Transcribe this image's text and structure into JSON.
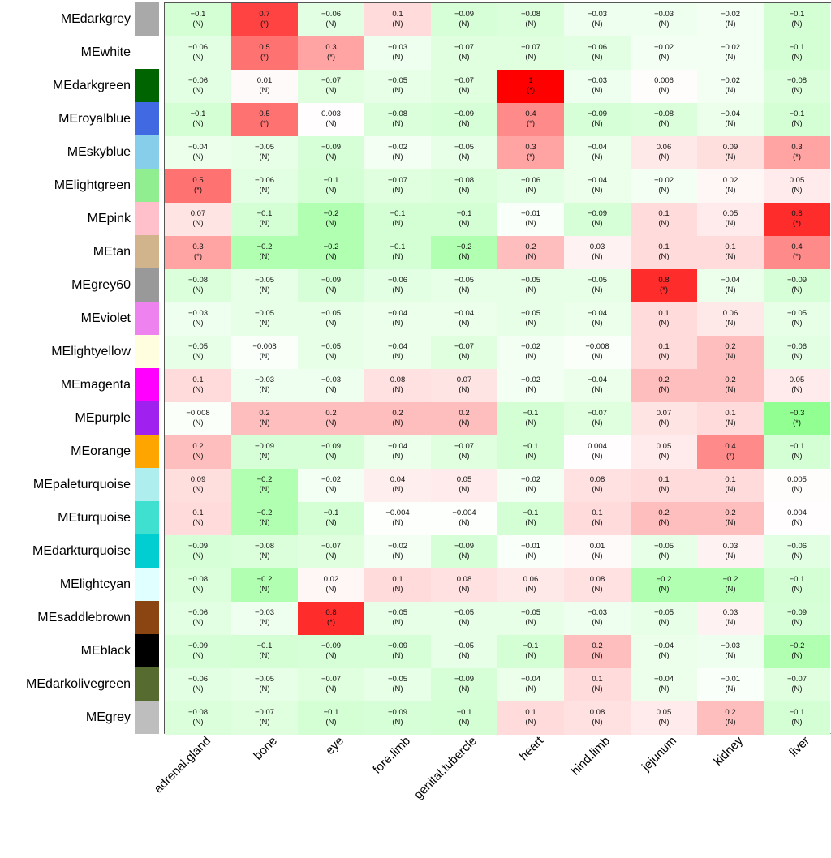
{
  "chart_data": {
    "type": "heatmap",
    "title": "",
    "xlabel": "",
    "ylabel": "",
    "columns": [
      "adrenal.gland",
      "bone",
      "eye",
      "fore.limb",
      "genital.tubercle",
      "heart",
      "hind.limb",
      "jejunum",
      "kidney",
      "liver"
    ],
    "rows": [
      {
        "name": "MEdarkgrey",
        "color": "#a9a9a9",
        "values": [
          "-0.1",
          "0.7",
          "-0.06",
          "0.1",
          "-0.09",
          "-0.08",
          "-0.03",
          "-0.03",
          "-0.02",
          "-0.1"
        ],
        "sig": [
          "N",
          "*",
          "N",
          "N",
          "N",
          "N",
          "N",
          "N",
          "N",
          "N"
        ]
      },
      {
        "name": "MEwhite",
        "color": "#ffffff",
        "values": [
          "-0.06",
          "0.5",
          "0.3",
          "-0.03",
          "-0.07",
          "-0.07",
          "-0.06",
          "-0.02",
          "-0.02",
          "-0.1"
        ],
        "sig": [
          "N",
          "*",
          "*",
          "N",
          "N",
          "N",
          "N",
          "N",
          "N",
          "N"
        ]
      },
      {
        "name": "MEdarkgreen",
        "color": "#006400",
        "values": [
          "-0.06",
          "0.01",
          "-0.07",
          "-0.05",
          "-0.07",
          "1",
          "-0.03",
          "0.006",
          "-0.02",
          "-0.08"
        ],
        "sig": [
          "N",
          "N",
          "N",
          "N",
          "N",
          "*",
          "N",
          "N",
          "N",
          "N"
        ]
      },
      {
        "name": "MEroyalblue",
        "color": "#4169e1",
        "values": [
          "-0.1",
          "0.5",
          "0.003",
          "-0.08",
          "-0.09",
          "0.4",
          "-0.09",
          "-0.08",
          "-0.04",
          "-0.1"
        ],
        "sig": [
          "N",
          "*",
          "N",
          "N",
          "N",
          "*",
          "N",
          "N",
          "N",
          "N"
        ]
      },
      {
        "name": "MEskyblue",
        "color": "#87ceeb",
        "values": [
          "-0.04",
          "-0.05",
          "-0.09",
          "-0.02",
          "-0.05",
          "0.3",
          "-0.04",
          "0.06",
          "0.09",
          "0.3"
        ],
        "sig": [
          "N",
          "N",
          "N",
          "N",
          "N",
          "*",
          "N",
          "N",
          "N",
          "*"
        ]
      },
      {
        "name": "MElightgreen",
        "color": "#90ee90",
        "values": [
          "0.5",
          "-0.06",
          "-0.1",
          "-0.07",
          "-0.08",
          "-0.06",
          "-0.04",
          "-0.02",
          "0.02",
          "0.05"
        ],
        "sig": [
          "*",
          "N",
          "N",
          "N",
          "N",
          "N",
          "N",
          "N",
          "N",
          "N"
        ]
      },
      {
        "name": "MEpink",
        "color": "#ffc0cb",
        "values": [
          "0.07",
          "-0.1",
          "-0.2",
          "-0.1",
          "-0.1",
          "-0.01",
          "-0.09",
          "0.1",
          "0.05",
          "0.8"
        ],
        "sig": [
          "N",
          "N",
          "N",
          "N",
          "N",
          "N",
          "N",
          "N",
          "N",
          "*"
        ]
      },
      {
        "name": "MEtan",
        "color": "#d2b48c",
        "values": [
          "0.3",
          "-0.2",
          "-0.2",
          "-0.1",
          "-0.2",
          "0.2",
          "0.03",
          "0.1",
          "0.1",
          "0.4"
        ],
        "sig": [
          "*",
          "N",
          "N",
          "N",
          "N",
          "N",
          "N",
          "N",
          "N",
          "*"
        ]
      },
      {
        "name": "MEgrey60",
        "color": "#999999",
        "values": [
          "-0.08",
          "-0.05",
          "-0.09",
          "-0.06",
          "-0.05",
          "-0.05",
          "-0.05",
          "0.8",
          "-0.04",
          "-0.09"
        ],
        "sig": [
          "N",
          "N",
          "N",
          "N",
          "N",
          "N",
          "N",
          "*",
          "N",
          "N"
        ]
      },
      {
        "name": "MEviolet",
        "color": "#ee82ee",
        "values": [
          "-0.03",
          "-0.05",
          "-0.05",
          "-0.04",
          "-0.04",
          "-0.05",
          "-0.04",
          "0.1",
          "0.06",
          "-0.05"
        ],
        "sig": [
          "N",
          "N",
          "N",
          "N",
          "N",
          "N",
          "N",
          "N",
          "N",
          "N"
        ]
      },
      {
        "name": "MElightyellow",
        "color": "#ffffe0",
        "values": [
          "-0.05",
          "-0.008",
          "-0.05",
          "-0.04",
          "-0.07",
          "-0.02",
          "-0.008",
          "0.1",
          "0.2",
          "-0.06"
        ],
        "sig": [
          "N",
          "N",
          "N",
          "N",
          "N",
          "N",
          "N",
          "N",
          "N",
          "N"
        ]
      },
      {
        "name": "MEmagenta",
        "color": "#ff00ff",
        "values": [
          "0.1",
          "-0.03",
          "-0.03",
          "0.08",
          "0.07",
          "-0.02",
          "-0.04",
          "0.2",
          "0.2",
          "0.05"
        ],
        "sig": [
          "N",
          "N",
          "N",
          "N",
          "N",
          "N",
          "N",
          "N",
          "N",
          "N"
        ]
      },
      {
        "name": "MEpurple",
        "color": "#a020f0",
        "values": [
          "-0.008",
          "0.2",
          "0.2",
          "0.2",
          "0.2",
          "-0.1",
          "-0.07",
          "0.07",
          "0.1",
          "-0.3"
        ],
        "sig": [
          "N",
          "N",
          "N",
          "N",
          "N",
          "N",
          "N",
          "N",
          "N",
          "*"
        ]
      },
      {
        "name": "MEorange",
        "color": "#ffa500",
        "values": [
          "0.2",
          "-0.09",
          "-0.09",
          "-0.04",
          "-0.07",
          "-0.1",
          "0.004",
          "0.05",
          "0.4",
          "-0.1"
        ],
        "sig": [
          "N",
          "N",
          "N",
          "N",
          "N",
          "N",
          "N",
          "N",
          "*",
          "N"
        ]
      },
      {
        "name": "MEpaleturquoise",
        "color": "#afeeee",
        "values": [
          "0.09",
          "-0.2",
          "-0.02",
          "0.04",
          "0.05",
          "-0.02",
          "0.08",
          "0.1",
          "0.1",
          "0.005"
        ],
        "sig": [
          "N",
          "N",
          "N",
          "N",
          "N",
          "N",
          "N",
          "N",
          "N",
          "N"
        ]
      },
      {
        "name": "MEturquoise",
        "color": "#40e0d0",
        "values": [
          "0.1",
          "-0.2",
          "-0.1",
          "-0.004",
          "-0.004",
          "-0.1",
          "0.1",
          "0.2",
          "0.2",
          "0.004"
        ],
        "sig": [
          "N",
          "N",
          "N",
          "N",
          "N",
          "N",
          "N",
          "N",
          "N",
          "N"
        ]
      },
      {
        "name": "MEdarkturquoise",
        "color": "#00ced1",
        "values": [
          "-0.09",
          "-0.08",
          "-0.07",
          "-0.02",
          "-0.09",
          "-0.01",
          "0.01",
          "-0.05",
          "0.03",
          "-0.06"
        ],
        "sig": [
          "N",
          "N",
          "N",
          "N",
          "N",
          "N",
          "N",
          "N",
          "N",
          "N"
        ]
      },
      {
        "name": "MElightcyan",
        "color": "#e0ffff",
        "values": [
          "-0.08",
          "-0.2",
          "0.02",
          "0.1",
          "0.08",
          "0.06",
          "0.08",
          "-0.2",
          "-0.2",
          "-0.1"
        ],
        "sig": [
          "N",
          "N",
          "N",
          "N",
          "N",
          "N",
          "N",
          "N",
          "N",
          "N"
        ]
      },
      {
        "name": "MEsaddlebrown",
        "color": "#8b4513",
        "values": [
          "-0.06",
          "-0.03",
          "0.8",
          "-0.05",
          "-0.05",
          "-0.05",
          "-0.03",
          "-0.05",
          "0.03",
          "-0.09"
        ],
        "sig": [
          "N",
          "N",
          "*",
          "N",
          "N",
          "N",
          "N",
          "N",
          "N",
          "N"
        ]
      },
      {
        "name": "MEblack",
        "color": "#000000",
        "values": [
          "-0.09",
          "-0.1",
          "-0.09",
          "-0.09",
          "-0.05",
          "-0.1",
          "0.2",
          "-0.04",
          "-0.03",
          "-0.2"
        ],
        "sig": [
          "N",
          "N",
          "N",
          "N",
          "N",
          "N",
          "N",
          "N",
          "N",
          "N"
        ]
      },
      {
        "name": "MEdarkolivegreen",
        "color": "#556b2f",
        "values": [
          "-0.06",
          "-0.05",
          "-0.07",
          "-0.05",
          "-0.09",
          "-0.04",
          "0.1",
          "-0.04",
          "-0.01",
          "-0.07"
        ],
        "sig": [
          "N",
          "N",
          "N",
          "N",
          "N",
          "N",
          "N",
          "N",
          "N",
          "N"
        ]
      },
      {
        "name": "MEgrey",
        "color": "#bebebe",
        "values": [
          "-0.08",
          "-0.07",
          "-0.1",
          "-0.09",
          "-0.1",
          "0.1",
          "0.08",
          "0.05",
          "0.2",
          "-0.1"
        ],
        "sig": [
          "N",
          "N",
          "N",
          "N",
          "N",
          "N",
          "N",
          "N",
          "N",
          "N"
        ]
      }
    ],
    "color_scale": {
      "negative": "#00ff00",
      "zero": "#ffffff",
      "positive": "#ff0000",
      "range": [
        -1,
        1
      ]
    },
    "legend": "none visible"
  }
}
